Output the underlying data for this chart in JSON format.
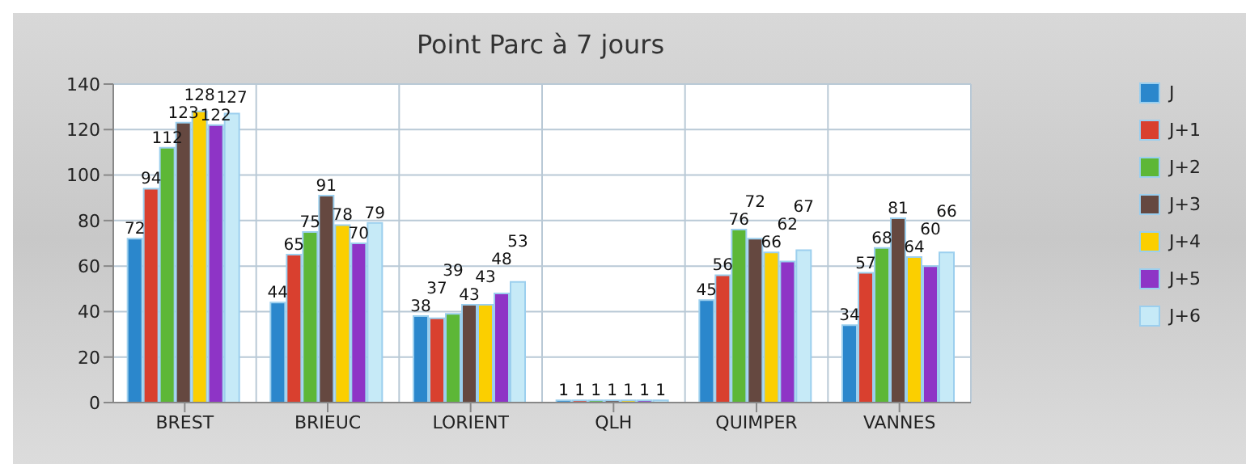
{
  "chart_data": {
    "type": "bar",
    "title": "Point Parc à 7 jours",
    "categories": [
      "BREST",
      "BRIEUC",
      "LORIENT",
      "QLH",
      "QUIMPER",
      "VANNES"
    ],
    "series": [
      {
        "name": "J",
        "color": "#2b87cc",
        "values": [
          72,
          44,
          38,
          1,
          45,
          34
        ]
      },
      {
        "name": "J+1",
        "color": "#d9402f",
        "values": [
          94,
          65,
          37,
          1,
          56,
          57
        ]
      },
      {
        "name": "J+2",
        "color": "#5db737",
        "values": [
          112,
          75,
          39,
          1,
          76,
          68
        ]
      },
      {
        "name": "J+3",
        "color": "#654840",
        "values": [
          123,
          91,
          43,
          1,
          72,
          81
        ]
      },
      {
        "name": "J+4",
        "color": "#fbcf00",
        "values": [
          128,
          78,
          43,
          1,
          66,
          64
        ]
      },
      {
        "name": "J+5",
        "color": "#8e34c6",
        "values": [
          122,
          70,
          48,
          1,
          62,
          60
        ]
      },
      {
        "name": "J+6",
        "color": "#c6eaf7",
        "values": [
          127,
          79,
          53,
          1,
          67,
          66
        ]
      }
    ],
    "ylim": [
      0,
      140
    ],
    "yticks": [
      0,
      20,
      40,
      60,
      80,
      100,
      120,
      140
    ],
    "grid": true,
    "legend": "right",
    "data_labels": true
  }
}
